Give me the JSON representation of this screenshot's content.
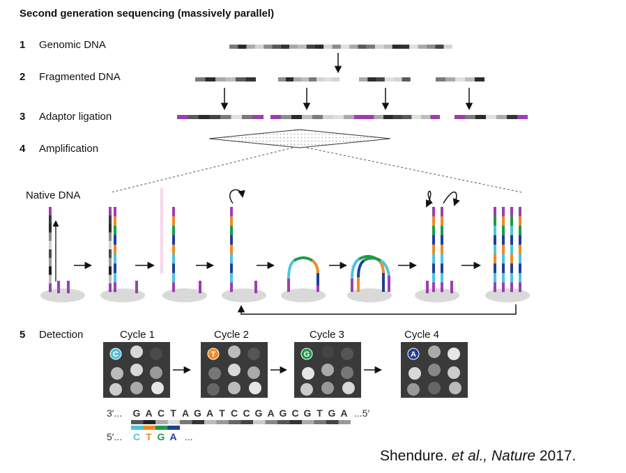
{
  "heading": "Second generation sequencing (massively parallel)",
  "steps": [
    {
      "num": "1",
      "label": "Genomic DNA"
    },
    {
      "num": "2",
      "label": "Fragmented DNA"
    },
    {
      "num": "3",
      "label": "Adaptor ligation"
    },
    {
      "num": "4",
      "label": "Amplification"
    },
    {
      "num": "5",
      "label": "Detection"
    }
  ],
  "native_label": "Native DNA",
  "cycles": [
    {
      "label": "Cycle 1",
      "base": "C",
      "color": "#4fc3dd"
    },
    {
      "label": "Cycle 2",
      "base": "T",
      "color": "#f08a24"
    },
    {
      "label": "Cycle 3",
      "base": "G",
      "color": "#1e9a4a"
    },
    {
      "label": "Cycle 4",
      "base": "A",
      "color": "#1f3f99"
    }
  ],
  "template_prefix": "3′...",
  "template_sequence": [
    "G",
    "A",
    "C",
    "T",
    "A",
    "G",
    "A",
    "T",
    "C",
    "C",
    "G",
    "A",
    "G",
    "C",
    "G",
    "T",
    "G",
    "A"
  ],
  "template_suffix": "...5′",
  "read_prefix": "5′...",
  "read_sequence": [
    "C",
    "T",
    "G",
    "A"
  ],
  "read_suffix": "...",
  "colors": {
    "adaptor": "#9b3fb0",
    "cyan": "#4fc3dd",
    "orange": "#f08a24",
    "green": "#1e9a4a",
    "blue": "#1f3f99",
    "dark_panel": "#3a3a3a"
  },
  "citation": {
    "author": "Shendure. ",
    "etal": "et al.,",
    "journal": "Nature",
    "year": " 2017."
  }
}
